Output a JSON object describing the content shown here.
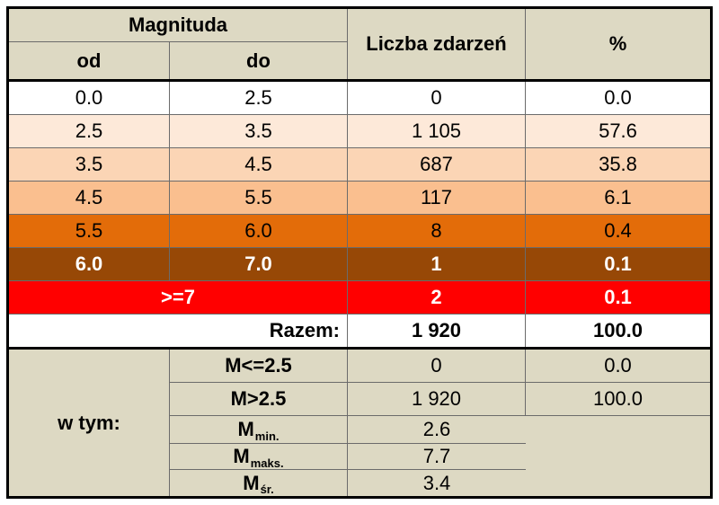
{
  "header": {
    "magnitude": "Magnituda",
    "from": "od",
    "to": "do",
    "count": "Liczba zdarzeń",
    "percent": "%"
  },
  "rows": [
    {
      "from": "0.0",
      "to": "2.5",
      "count": "0",
      "percent": "0.0",
      "bg": "#ffffff"
    },
    {
      "from": "2.5",
      "to": "3.5",
      "count": "1 105",
      "percent": "57.6",
      "bg": "#fde9d9"
    },
    {
      "from": "3.5",
      "to": "4.5",
      "count": "687",
      "percent": "35.8",
      "bg": "#fbd5b5"
    },
    {
      "from": "4.5",
      "to": "5.5",
      "count": "117",
      "percent": "6.1",
      "bg": "#fabf8f"
    },
    {
      "from": "5.5",
      "to": "6.0",
      "count": "8",
      "percent": "0.4",
      "bg": "#e36c09"
    },
    {
      "from": "6.0",
      "to": "7.0",
      "count": "1",
      "percent": "0.1",
      "bg": "#974806"
    }
  ],
  "extreme": {
    "range": ">=7",
    "count": "2",
    "percent": "0.1",
    "bg": "#ff0000"
  },
  "total": {
    "label": "Razem:",
    "count": "1 920",
    "percent": "100.0"
  },
  "breakdown": {
    "label": "w tym:",
    "bg": "#ddd9c3",
    "items": [
      {
        "label": "M<=2.5",
        "count": "0",
        "percent": "0.0"
      },
      {
        "label": "M>2.5",
        "count": "1 920",
        "percent": "100.0"
      },
      {
        "label": "M",
        "sub": "min.",
        "value": "2.6"
      },
      {
        "label": "M",
        "sub": "maks.",
        "value": "7.7"
      },
      {
        "label": "M",
        "sub": "śr.",
        "value": "3.4"
      }
    ]
  }
}
